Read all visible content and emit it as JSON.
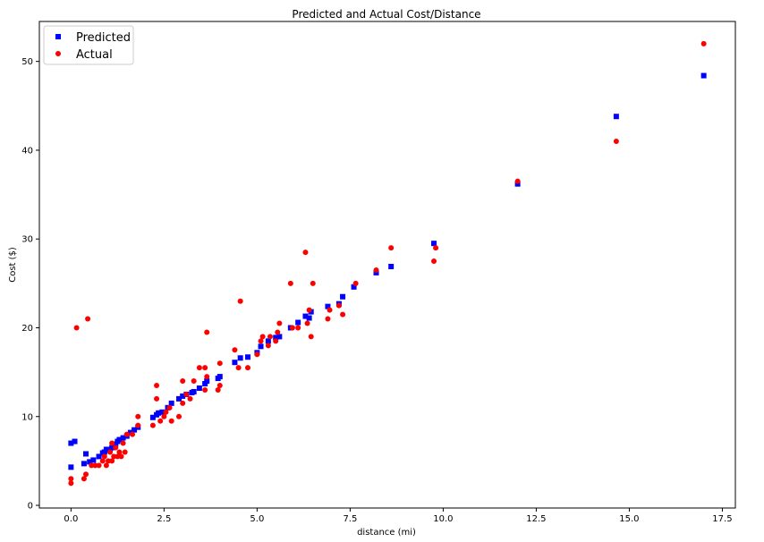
{
  "chart_data": {
    "type": "scatter",
    "title": "Predicted and Actual Cost/Distance",
    "xlabel": "distance (mi)",
    "ylabel": "Cost ($)",
    "xlim": [
      -0.85,
      17.85
    ],
    "ylim": [
      -0.3,
      54.5
    ],
    "xticks": [
      0.0,
      2.5,
      5.0,
      7.5,
      10.0,
      12.5,
      15.0,
      17.5
    ],
    "xtick_labels": [
      "0.0",
      "2.5",
      "5.0",
      "7.5",
      "10.0",
      "12.5",
      "15.0",
      "17.5"
    ],
    "yticks": [
      0,
      10,
      20,
      30,
      40,
      50
    ],
    "ytick_labels": [
      "0",
      "10",
      "20",
      "30",
      "40",
      "50"
    ],
    "grid": false,
    "legend_position": "top-left",
    "series": [
      {
        "name": "Predicted",
        "color": "#0000ff",
        "marker": "square",
        "points": [
          [
            0.0,
            4.3
          ],
          [
            0.0,
            7.0
          ],
          [
            0.1,
            7.2
          ],
          [
            0.35,
            4.7
          ],
          [
            0.4,
            5.8
          ],
          [
            0.5,
            4.9
          ],
          [
            0.6,
            5.1
          ],
          [
            0.75,
            5.5
          ],
          [
            0.85,
            5.9
          ],
          [
            0.9,
            6.0
          ],
          [
            0.95,
            6.3
          ],
          [
            1.0,
            6.2
          ],
          [
            1.05,
            6.3
          ],
          [
            1.1,
            6.5
          ],
          [
            1.15,
            6.7
          ],
          [
            1.2,
            6.9
          ],
          [
            1.25,
            7.2
          ],
          [
            1.3,
            7.4
          ],
          [
            1.4,
            7.6
          ],
          [
            1.5,
            7.8
          ],
          [
            1.6,
            8.2
          ],
          [
            1.7,
            8.5
          ],
          [
            1.8,
            8.8
          ],
          [
            2.2,
            9.9
          ],
          [
            2.3,
            10.2
          ],
          [
            2.35,
            10.4
          ],
          [
            2.45,
            10.5
          ],
          [
            2.6,
            11.0
          ],
          [
            2.7,
            11.5
          ],
          [
            2.9,
            12.0
          ],
          [
            3.0,
            12.3
          ],
          [
            3.1,
            12.5
          ],
          [
            3.25,
            12.7
          ],
          [
            3.3,
            12.8
          ],
          [
            3.45,
            13.2
          ],
          [
            3.6,
            13.7
          ],
          [
            3.65,
            14.0
          ],
          [
            3.95,
            14.3
          ],
          [
            4.0,
            14.5
          ],
          [
            4.4,
            16.1
          ],
          [
            4.55,
            16.6
          ],
          [
            4.75,
            16.7
          ],
          [
            5.0,
            17.2
          ],
          [
            5.1,
            17.9
          ],
          [
            5.3,
            18.5
          ],
          [
            5.5,
            18.9
          ],
          [
            5.6,
            19.0
          ],
          [
            5.9,
            20.0
          ],
          [
            6.1,
            20.6
          ],
          [
            6.3,
            21.3
          ],
          [
            6.4,
            21.1
          ],
          [
            6.45,
            21.8
          ],
          [
            6.9,
            22.4
          ],
          [
            7.2,
            22.7
          ],
          [
            7.3,
            23.5
          ],
          [
            7.6,
            24.6
          ],
          [
            8.2,
            26.2
          ],
          [
            8.6,
            26.9
          ],
          [
            9.75,
            29.5
          ],
          [
            12.0,
            36.2
          ],
          [
            14.65,
            43.8
          ],
          [
            17.0,
            48.4
          ]
        ]
      },
      {
        "name": "Actual",
        "color": "#ff0000",
        "marker": "circle",
        "points": [
          [
            0.0,
            2.5
          ],
          [
            0.0,
            3.0
          ],
          [
            0.15,
            20.0
          ],
          [
            0.35,
            3.0
          ],
          [
            0.4,
            3.5
          ],
          [
            0.45,
            21.0
          ],
          [
            0.55,
            4.5
          ],
          [
            0.65,
            4.5
          ],
          [
            0.75,
            4.5
          ],
          [
            0.85,
            5.0
          ],
          [
            0.9,
            5.5
          ],
          [
            0.95,
            4.5
          ],
          [
            1.0,
            5.0
          ],
          [
            1.05,
            6.0
          ],
          [
            1.1,
            5.0
          ],
          [
            1.1,
            7.0
          ],
          [
            1.15,
            5.5
          ],
          [
            1.2,
            6.5
          ],
          [
            1.25,
            5.5
          ],
          [
            1.3,
            6.0
          ],
          [
            1.35,
            5.5
          ],
          [
            1.4,
            7.0
          ],
          [
            1.45,
            6.0
          ],
          [
            1.5,
            8.0
          ],
          [
            1.65,
            8.0
          ],
          [
            1.8,
            9.0
          ],
          [
            1.8,
            10.0
          ],
          [
            2.2,
            9.0
          ],
          [
            2.3,
            12.0
          ],
          [
            2.3,
            13.5
          ],
          [
            2.4,
            9.5
          ],
          [
            2.5,
            10.0
          ],
          [
            2.55,
            10.5
          ],
          [
            2.65,
            11.0
          ],
          [
            2.7,
            9.5
          ],
          [
            2.9,
            10.0
          ],
          [
            3.0,
            11.5
          ],
          [
            3.0,
            14.0
          ],
          [
            3.1,
            12.5
          ],
          [
            3.2,
            12.0
          ],
          [
            3.3,
            14.0
          ],
          [
            3.45,
            15.5
          ],
          [
            3.6,
            13.0
          ],
          [
            3.6,
            15.5
          ],
          [
            3.65,
            14.5
          ],
          [
            3.65,
            19.5
          ],
          [
            3.95,
            13.0
          ],
          [
            4.0,
            13.5
          ],
          [
            4.0,
            16.0
          ],
          [
            4.4,
            17.5
          ],
          [
            4.5,
            15.5
          ],
          [
            4.55,
            23.0
          ],
          [
            4.75,
            15.5
          ],
          [
            5.0,
            17.0
          ],
          [
            5.1,
            18.5
          ],
          [
            5.15,
            19.0
          ],
          [
            5.3,
            18.0
          ],
          [
            5.35,
            19.0
          ],
          [
            5.5,
            18.5
          ],
          [
            5.55,
            19.5
          ],
          [
            5.6,
            20.5
          ],
          [
            5.9,
            25.0
          ],
          [
            5.95,
            20.0
          ],
          [
            6.1,
            20.0
          ],
          [
            6.3,
            28.5
          ],
          [
            6.35,
            20.5
          ],
          [
            6.4,
            22.0
          ],
          [
            6.45,
            19.0
          ],
          [
            6.5,
            25.0
          ],
          [
            6.9,
            21.0
          ],
          [
            6.95,
            22.0
          ],
          [
            7.2,
            22.5
          ],
          [
            7.3,
            21.5
          ],
          [
            7.65,
            25.0
          ],
          [
            8.2,
            26.5
          ],
          [
            8.6,
            29.0
          ],
          [
            9.75,
            27.5
          ],
          [
            9.8,
            29.0
          ],
          [
            12.0,
            36.5
          ],
          [
            14.65,
            41.0
          ],
          [
            17.0,
            52.0
          ]
        ]
      }
    ]
  }
}
